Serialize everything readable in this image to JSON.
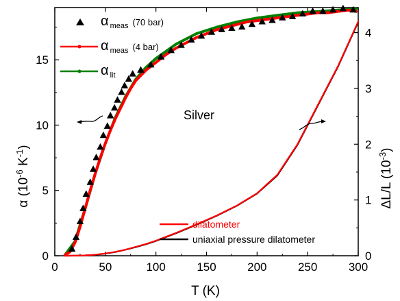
{
  "chart_data": {
    "type": "line",
    "title": "",
    "xlabel": "T (K)",
    "ylabel_left": {
      "main": "α (10",
      "sup": "-6",
      "unit": " K",
      "unit_sup": "-1",
      "close": ")"
    },
    "ylabel_right": {
      "main": "ΔL/L (10",
      "sup": "-3",
      "close": ")"
    },
    "xlim": [
      0,
      300
    ],
    "ylim_left": [
      0,
      19
    ],
    "ylim_right": [
      0,
      4.45
    ],
    "x_ticks": [
      0,
      50,
      100,
      150,
      200,
      250,
      300
    ],
    "y_ticks_left": [
      0,
      5,
      10,
      15
    ],
    "y_ticks_right": [
      0,
      1,
      2,
      3,
      4
    ],
    "annotation": "Silver",
    "legend_top": [
      {
        "symbol": "α",
        "sub": "meas",
        "suffix": "(70 bar)",
        "color": "#000000",
        "marker": "triangle"
      },
      {
        "symbol": "α",
        "sub": "meas",
        "suffix": "(4 bar)",
        "color": "#ff0000",
        "marker": "line"
      },
      {
        "symbol": "α",
        "sub": "lit",
        "suffix": "",
        "color": "#008000",
        "marker": "line"
      }
    ],
    "legend_bottom": [
      {
        "label": "dilatometer",
        "color": "#ff0000"
      },
      {
        "label": "uniaxial pressure dilatometer",
        "color": "#000000"
      }
    ],
    "series": [
      {
        "name": "α meas (70 bar)",
        "axis": "left",
        "style": "markers",
        "color": "#000000",
        "x": [
          17,
          21,
          25,
          28,
          31,
          35,
          38,
          41,
          45,
          48,
          52,
          55,
          59,
          62,
          66,
          69,
          73,
          77,
          85,
          95,
          105,
          115,
          125,
          135,
          145,
          155,
          165,
          175,
          185,
          195,
          205,
          215,
          225,
          235,
          245,
          255,
          265,
          275,
          285,
          295
        ],
        "y": [
          0.5,
          1.4,
          2.6,
          3.6,
          4.7,
          5.6,
          6.6,
          7.5,
          8.3,
          9.2,
          9.9,
          10.7,
          11.3,
          11.9,
          12.5,
          13.0,
          13.5,
          13.9,
          14.2,
          14.6,
          15.2,
          15.7,
          16.1,
          16.5,
          16.8,
          17.1,
          17.3,
          17.4,
          17.5,
          17.7,
          17.9,
          18.0,
          18.2,
          18.3,
          18.5,
          18.7,
          18.7,
          18.8,
          18.9,
          18.8
        ]
      },
      {
        "name": "α meas (4 bar)",
        "axis": "left",
        "style": "line",
        "color": "#ff0000",
        "x": [
          10,
          15,
          20,
          25,
          30,
          35,
          40,
          45,
          50,
          55,
          60,
          65,
          70,
          75,
          80,
          90,
          100,
          110,
          120,
          130,
          140,
          150,
          160,
          170,
          180,
          190,
          200,
          210,
          220,
          230,
          240,
          250,
          260,
          270,
          280,
          290,
          298
        ],
        "y": [
          0.05,
          0.3,
          1.0,
          2.2,
          3.6,
          5.0,
          6.3,
          7.5,
          8.6,
          9.6,
          10.5,
          11.3,
          12.1,
          12.8,
          13.4,
          14.2,
          14.8,
          15.4,
          15.9,
          16.3,
          16.7,
          17.0,
          17.3,
          17.5,
          17.7,
          17.9,
          18.0,
          18.1,
          18.2,
          18.3,
          18.4,
          18.5,
          18.6,
          18.6,
          18.7,
          18.8,
          18.7
        ]
      },
      {
        "name": "α lit",
        "axis": "left",
        "style": "line",
        "color": "#008000",
        "x": [
          10,
          20,
          30,
          40,
          50,
          60,
          70,
          80,
          90,
          100,
          120,
          140,
          160,
          180,
          200,
          220,
          240,
          260,
          280,
          298
        ],
        "y": [
          0.05,
          1.1,
          3.6,
          6.3,
          8.6,
          10.6,
          12.2,
          13.5,
          14.4,
          15.1,
          16.2,
          17.0,
          17.5,
          17.9,
          18.2,
          18.4,
          18.6,
          18.7,
          18.8,
          18.9
        ]
      },
      {
        "name": "dilatometer",
        "axis": "right",
        "style": "line",
        "color": "#ff0000",
        "x": [
          10,
          20,
          30,
          40,
          50,
          60,
          70,
          80,
          90,
          100,
          120,
          140,
          160,
          180,
          200,
          220,
          240,
          260,
          280,
          300
        ],
        "y": [
          0.0,
          0.001,
          0.006,
          0.018,
          0.04,
          0.07,
          0.11,
          0.16,
          0.21,
          0.27,
          0.41,
          0.56,
          0.72,
          0.9,
          1.12,
          1.45,
          2.0,
          2.7,
          3.4,
          4.2
        ]
      },
      {
        "name": "uniaxial pressure dilatometer",
        "axis": "right",
        "style": "line",
        "color": "#000000",
        "x": [
          10,
          20,
          30,
          40,
          50,
          60,
          70,
          80,
          90,
          100,
          120,
          140,
          160,
          180,
          200,
          220,
          240,
          260,
          280,
          300
        ],
        "y": [
          0.0,
          0.001,
          0.006,
          0.017,
          0.038,
          0.068,
          0.108,
          0.155,
          0.205,
          0.265,
          0.405,
          0.555,
          0.715,
          0.895,
          1.115,
          1.44,
          1.99,
          2.69,
          3.39,
          4.19
        ]
      }
    ]
  }
}
